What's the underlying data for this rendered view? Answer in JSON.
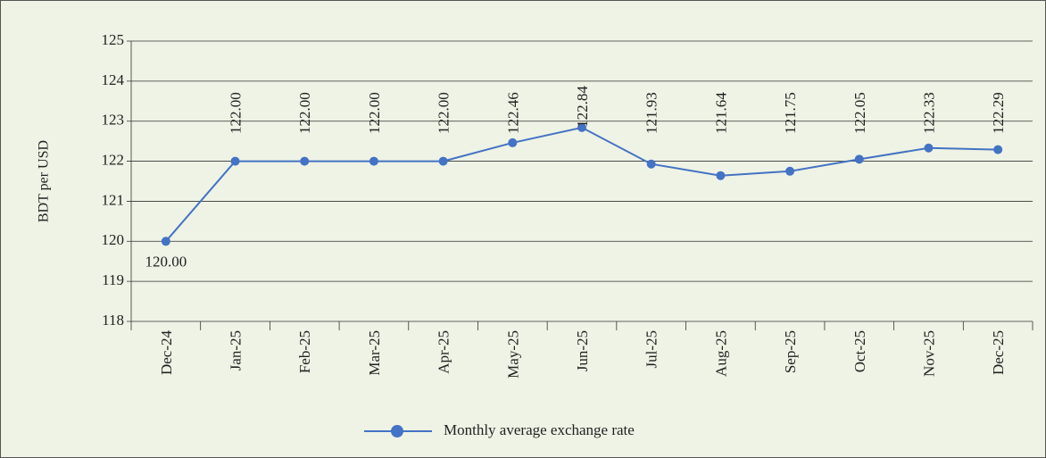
{
  "chart_data": {
    "type": "line",
    "y_label": "BDT per USD",
    "categories": [
      "Dec-24",
      "Jan-25",
      "Feb-25",
      "Mar-25",
      "Apr-25",
      "May-25",
      "Jun-25",
      "Jul-25",
      "Aug-25",
      "Sep-25",
      "Oct-25",
      "Nov-25",
      "Dec-25"
    ],
    "series": [
      {
        "name": "Monthly average exchange rate",
        "color": "#4472c4",
        "values": [
          120.0,
          122.0,
          122.0,
          122.0,
          122.0,
          122.46,
          122.84,
          121.93,
          121.64,
          121.75,
          122.05,
          122.33,
          122.29
        ],
        "value_labels": [
          "120.00",
          "122.00",
          "122.00",
          "122.00",
          "122.00",
          "122.46",
          "122.84",
          "121.93",
          "121.64",
          "121.75",
          "122.05",
          "122.33",
          "122.29"
        ]
      }
    ],
    "ylim": [
      118,
      125
    ],
    "yticks": [
      118,
      119,
      120,
      121,
      122,
      123,
      124,
      125
    ],
    "grid": true,
    "legend": "bottom"
  }
}
